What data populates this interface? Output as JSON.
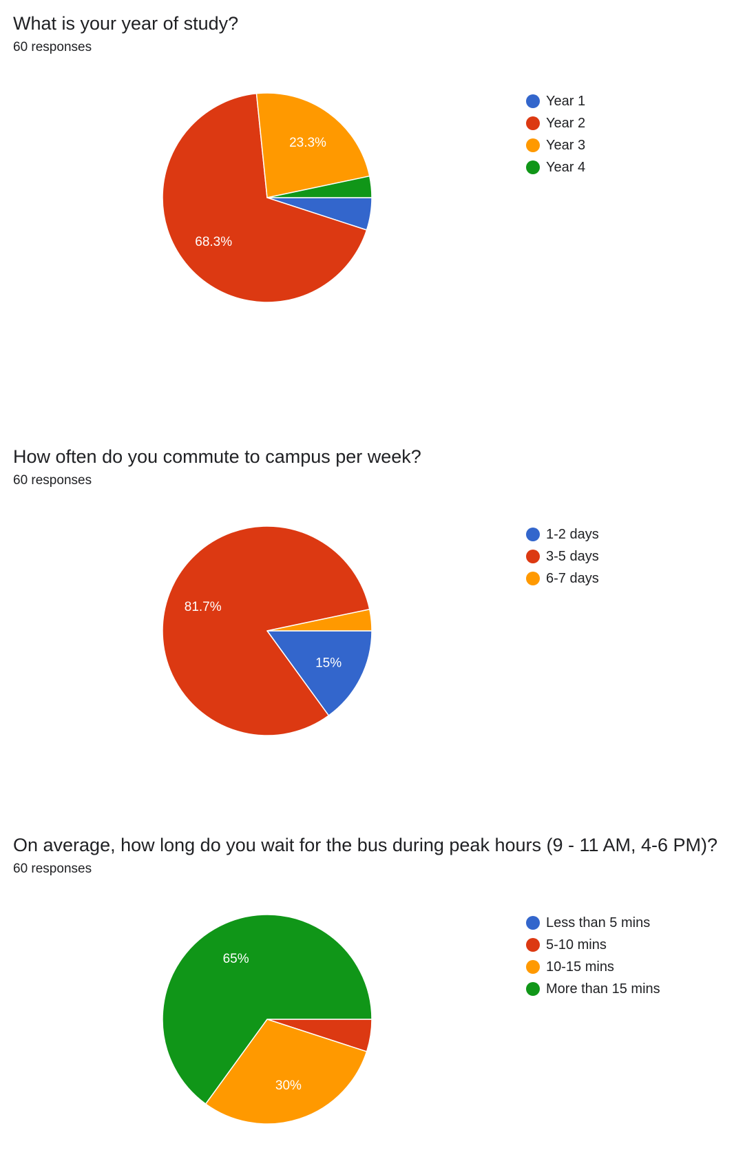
{
  "colors": {
    "blue": "#3366cc",
    "red": "#dc3912",
    "orange": "#ff9900",
    "green": "#109618"
  },
  "questions": [
    {
      "title": "What is your year of study?",
      "responses": "60 responses",
      "legend": [
        {
          "label": "Year 1",
          "color": "#3366cc"
        },
        {
          "label": "Year 2",
          "color": "#dc3912"
        },
        {
          "label": "Year 3",
          "color": "#ff9900"
        },
        {
          "label": "Year 4",
          "color": "#109618"
        }
      ]
    },
    {
      "title": "How often do you commute to campus per week?",
      "responses": "60 responses",
      "legend": [
        {
          "label": "1-2 days",
          "color": "#3366cc"
        },
        {
          "label": "3-5 days",
          "color": "#dc3912"
        },
        {
          "label": "6-7 days",
          "color": "#ff9900"
        }
      ]
    },
    {
      "title": "On average, how long do you wait for the bus during peak hours (9 - 11 AM, 4-6 PM)?",
      "responses": "60 responses",
      "legend": [
        {
          "label": "Less than 5 mins",
          "color": "#3366cc"
        },
        {
          "label": "5-10 mins",
          "color": "#dc3912"
        },
        {
          "label": "10-15 mins",
          "color": "#ff9900"
        },
        {
          "label": "More than 15 mins",
          "color": "#109618"
        }
      ]
    }
  ],
  "chart_data": [
    {
      "type": "pie",
      "title": "What is your year of study?",
      "categories": [
        "Year 1",
        "Year 2",
        "Year 3",
        "Year 4"
      ],
      "values": [
        5.0,
        68.3,
        23.3,
        3.3
      ],
      "labels": [
        "",
        "68.3%",
        "23.3%",
        ""
      ],
      "colors": [
        "#3366cc",
        "#dc3912",
        "#ff9900",
        "#109618"
      ],
      "legend": "right"
    },
    {
      "type": "pie",
      "title": "How often do you commute to campus per week?",
      "categories": [
        "1-2 days",
        "3-5 days",
        "6-7 days"
      ],
      "values": [
        15.0,
        81.7,
        3.3
      ],
      "labels": [
        "15%",
        "81.7%",
        ""
      ],
      "colors": [
        "#3366cc",
        "#dc3912",
        "#ff9900"
      ],
      "legend": "right"
    },
    {
      "type": "pie",
      "title": "On average, how long do you wait for the bus during peak hours (9 - 11 AM, 4-6 PM)?",
      "categories": [
        "Less than 5 mins",
        "5-10 mins",
        "10-15 mins",
        "More than 15 mins"
      ],
      "values": [
        0,
        5.0,
        30.0,
        65.0
      ],
      "labels": [
        "",
        "",
        "30%",
        "65%"
      ],
      "colors": [
        "#3366cc",
        "#dc3912",
        "#ff9900",
        "#109618"
      ],
      "legend": "right"
    }
  ]
}
